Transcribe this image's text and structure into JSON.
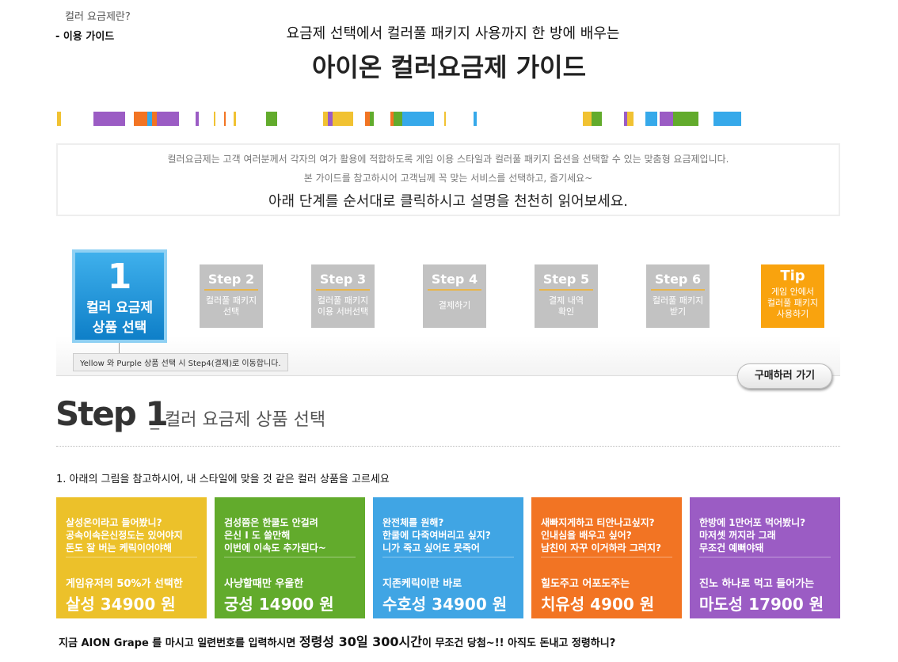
{
  "nav": {
    "item1": "컬러 요금제란?",
    "item2": "- 이용 가이드"
  },
  "header": {
    "subtitle": "요금제 선택에서 컬러풀 패키지 사용까지 한 방에 배우는",
    "title": "아이온 컬러요금제 가이드"
  },
  "intro": {
    "line1": "컬러요금제는 고객 여러분께서 각자의 여가 활용에 적합하도록 게임 이용 스타일과 컬러풀 패키지 옵션을 선택할 수 있는 맞춤형 요금제입니다.",
    "line2": "본 가이드를 참고하시어 고객님께 꼭 맞는 서비스를 선택하고, 즐기세요~",
    "line3": "아래 단계를 순서대로 클릭하시고 설명을 천천히 읽어보세요."
  },
  "steps": {
    "step1": {
      "num": "1",
      "desc1": "컬러 요금제",
      "desc2": "상품 선택"
    },
    "items": [
      {
        "head": "Step 2",
        "d1": "컬러풀 패키지",
        "d2": "선택"
      },
      {
        "head": "Step 3",
        "d1": "컬러풀 패키지",
        "d2": "이용 서버선택"
      },
      {
        "head": "Step 4",
        "d1": "결제하기",
        "d2": ""
      },
      {
        "head": "Step 5",
        "d1": "결제 내역",
        "d2": "확인"
      },
      {
        "head": "Step 6",
        "d1": "컬러풀 패키지",
        "d2": "받기"
      }
    ],
    "tip": {
      "head": "Tip",
      "d1": "게임 안에서",
      "d2": "컬러풀 패키지",
      "d3": "사용하기"
    },
    "note": "Yellow 와 Purple 상품 선택 시 Step4(결제)로 이동합니다.",
    "buy_label": "구매하러 가기"
  },
  "section": {
    "head": "Step 1",
    "sub": "_ 컬러 요금제 상품 선택",
    "question": "1. 아래의 그림을 참고하시어, 내 스타일에 맞을 것 같은 컬러 상품을 고르세요"
  },
  "cards": [
    {
      "color": "#ecc12a",
      "t1": "살성온이라고 들어봤니?",
      "t2": "공속이속은신정도는 있어야지",
      "t3": "돈도 잘 버는 케릭이어야해",
      "sub": "게임유저의 50%가 선택한",
      "price": "살성 34900 원"
    },
    {
      "color": "#62ab2c",
      "t1": "검성쯤은 한쿨도 안걸려",
      "t2": "은신 I 도 쓸만해",
      "t3": "이번에 이속도 추가된다~",
      "sub": "사냥할때만 우울한",
      "price": "궁성 14900 원"
    },
    {
      "color": "#40a5e4",
      "t1": "완전체를 원해?",
      "t2": "한쿨에 다죽여버리고 싶지?",
      "t3": "니가 죽고 싶어도 못죽어",
      "sub": "지존케릭이란 바로",
      "price": "수호성 34900 원"
    },
    {
      "color": "#f27423",
      "t1": "새빠지게하고 티안나고싶지?",
      "t2": "인내심을 배우고 싶어?",
      "t3": "남친이 자꾸 이거하라 그러지?",
      "sub": "힐도주고 어포도주는",
      "price": "치유성 4900 원"
    },
    {
      "color": "#9b5cc4",
      "t1": "한방에 1만어포 먹어봤니?",
      "t2": "마저셋 꺼지라 그래",
      "t3": "무조건 예뻐야돼",
      "sub": "진노 하나로 먹고 들어가는",
      "price": "마도성 17900 원"
    }
  ],
  "promo": {
    "a": "지금 AION Grape 를 마시고 일련번호를 입력하시면 ",
    "b": "정령성 30일 300시간",
    "c": "이 무조건 당첨~!!  아직도 돈내고 정령하니?"
  }
}
